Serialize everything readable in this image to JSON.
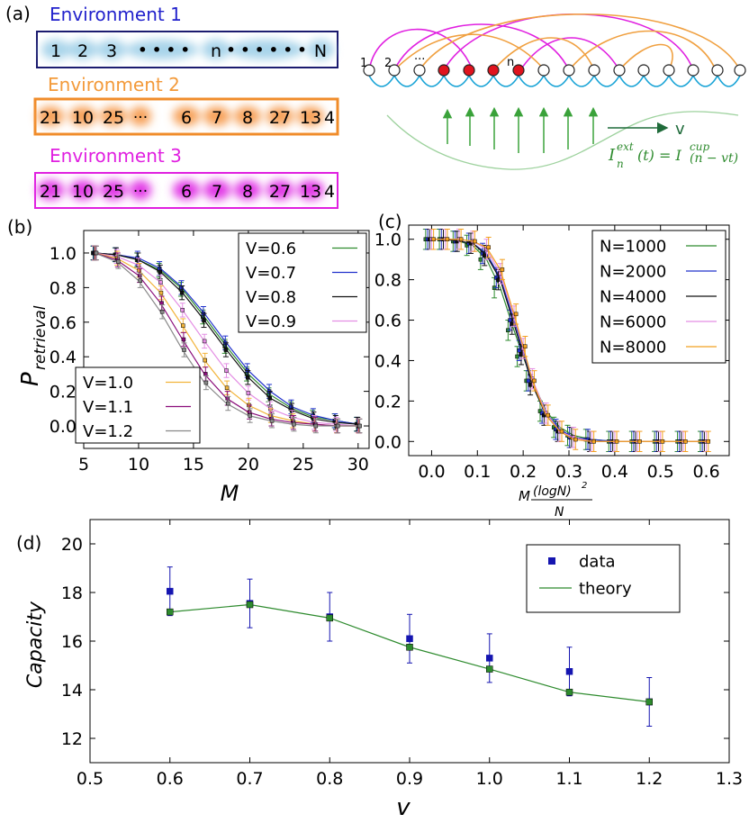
{
  "panel_labels": {
    "a": "(a)",
    "b": "(b)",
    "c": "(c)",
    "d": "(d)"
  },
  "panel_a": {
    "environments": [
      {
        "title": "Environment 1",
        "color": "#2222cc",
        "box_color": "#1a1a6e",
        "glow": "#a8d4ea",
        "sequence": [
          "1",
          "2",
          "3",
          "• • • •",
          "n",
          "• • • • • •",
          "N"
        ]
      },
      {
        "title": "Environment 2",
        "color": "#f39a3a",
        "box_color": "#f08c2a",
        "glow": "#f7a35c",
        "sequence": [
          "21",
          "10",
          "25",
          "···",
          "6",
          "7",
          "8",
          "27",
          "13",
          "4"
        ]
      },
      {
        "title": "Environment 3",
        "color": "#e020e0",
        "box_color": "#e020e0",
        "glow": "#e23ae6",
        "sequence": [
          "21",
          "10",
          "25",
          "···",
          "6",
          "7",
          "8",
          "27",
          "13",
          "4"
        ]
      }
    ],
    "chain": {
      "node_labels": [
        "1",
        "2",
        "···",
        "n"
      ],
      "arrow_label": "v",
      "formula": "I_n^{ext}(t) = I^{cup}(n − vt)",
      "formula_left": "I",
      "formula_n": "n",
      "formula_ext": "ext",
      "formula_mid": "(t) = I",
      "formula_cup": "cup",
      "formula_right": "(n − vt)",
      "colors": {
        "active": "#e0141e",
        "wave": "#17a3d6",
        "arc_magenta": "#e020e0",
        "arc_orange": "#f0a040",
        "green": "#3aa23a"
      }
    }
  },
  "chart_data": [
    {
      "id": "b",
      "type": "line",
      "xlabel": "M",
      "ylabel": "P",
      "ylabel_sub": "retrieval",
      "xlim": [
        5,
        31
      ],
      "ylim": [
        -0.13,
        1.13
      ],
      "xticks": [
        "5",
        "10",
        "15",
        "20",
        "25",
        "30"
      ],
      "yticks": [
        "0.0",
        "0.2",
        "0.4",
        "0.6",
        "0.8",
        "1.0"
      ],
      "legends": [
        {
          "placement": "top-right",
          "items": [
            "V=0.6",
            "V=0.7",
            "V=0.8",
            "V=0.9"
          ]
        },
        {
          "placement": "bottom-left",
          "items": [
            "V=1.0",
            "V=1.1",
            "V=1.2"
          ]
        }
      ],
      "x": [
        6,
        8,
        10,
        12,
        14,
        16,
        18,
        20,
        22,
        24,
        26,
        28,
        30
      ],
      "series": [
        {
          "name": "V=0.6",
          "color": "#2e8b2e",
          "values": [
            1.0,
            0.99,
            0.96,
            0.9,
            0.79,
            0.63,
            0.46,
            0.3,
            0.18,
            0.1,
            0.05,
            0.03,
            0.01
          ]
        },
        {
          "name": "V=0.7",
          "color": "#2233cc",
          "values": [
            1.0,
            0.99,
            0.97,
            0.91,
            0.8,
            0.65,
            0.48,
            0.32,
            0.2,
            0.11,
            0.06,
            0.03,
            0.01
          ]
        },
        {
          "name": "V=0.8",
          "color": "#111111",
          "values": [
            1.0,
            0.99,
            0.96,
            0.89,
            0.77,
            0.61,
            0.44,
            0.28,
            0.16,
            0.09,
            0.04,
            0.02,
            0.01
          ]
        },
        {
          "name": "V=0.9",
          "color": "#e48ee4",
          "values": [
            1.0,
            0.98,
            0.93,
            0.83,
            0.67,
            0.49,
            0.32,
            0.19,
            0.1,
            0.05,
            0.02,
            0.01,
            0.0
          ]
        },
        {
          "name": "V=1.0",
          "color": "#f2b43a",
          "values": [
            1.0,
            0.97,
            0.9,
            0.77,
            0.58,
            0.38,
            0.22,
            0.12,
            0.06,
            0.03,
            0.01,
            0.0,
            0.0
          ]
        },
        {
          "name": "V=1.1",
          "color": "#8a0c7a",
          "values": [
            1.0,
            0.96,
            0.87,
            0.71,
            0.5,
            0.3,
            0.16,
            0.08,
            0.04,
            0.02,
            0.01,
            0.0,
            0.0
          ]
        },
        {
          "name": "V=1.2",
          "color": "#888888",
          "values": [
            1.0,
            0.95,
            0.84,
            0.66,
            0.44,
            0.25,
            0.13,
            0.06,
            0.03,
            0.01,
            0.0,
            0.0,
            0.0
          ]
        }
      ]
    },
    {
      "id": "c",
      "type": "line",
      "xlabel_prefix": "M",
      "xlabel_num": "(logN)",
      "xlabel_sup": "2",
      "xlabel_den": "N",
      "xlim": [
        -0.05,
        0.65
      ],
      "ylim": [
        -0.07,
        1.07
      ],
      "xticks": [
        "0.0",
        "0.1",
        "0.2",
        "0.3",
        "0.4",
        "0.5",
        "0.6"
      ],
      "yticks": [
        "0.0",
        "0.2",
        "0.4",
        "0.6",
        "0.8",
        "1.0"
      ],
      "legends": [
        {
          "placement": "top-right",
          "items": [
            "N=1000",
            "N=2000",
            "N=4000",
            "N=6000",
            "N=8000"
          ]
        }
      ],
      "x": [
        0.0,
        0.03,
        0.06,
        0.09,
        0.12,
        0.15,
        0.18,
        0.2,
        0.22,
        0.25,
        0.28,
        0.31,
        0.35,
        0.4,
        0.45,
        0.5,
        0.55,
        0.6
      ],
      "series": [
        {
          "name": "N=1000",
          "color": "#2e8b2e",
          "values": [
            1.0,
            1.0,
            0.99,
            0.97,
            0.9,
            0.76,
            0.55,
            0.42,
            0.3,
            0.15,
            0.07,
            0.03,
            0.01,
            0.0,
            0.0,
            0.0,
            0.0,
            0.0
          ]
        },
        {
          "name": "N=2000",
          "color": "#2233cc",
          "values": [
            1.0,
            1.0,
            0.99,
            0.98,
            0.93,
            0.81,
            0.6,
            0.45,
            0.3,
            0.14,
            0.06,
            0.02,
            0.01,
            0.0,
            0.0,
            0.0,
            0.0,
            0.0
          ]
        },
        {
          "name": "N=4000",
          "color": "#111111",
          "values": [
            1.0,
            1.0,
            0.99,
            0.98,
            0.92,
            0.8,
            0.58,
            0.43,
            0.28,
            0.13,
            0.05,
            0.02,
            0.0,
            0.0,
            0.0,
            0.0,
            0.0,
            0.0
          ]
        },
        {
          "name": "N=6000",
          "color": "#e48ee4",
          "values": [
            1.0,
            1.0,
            1.0,
            0.99,
            0.95,
            0.83,
            0.62,
            0.46,
            0.31,
            0.14,
            0.05,
            0.02,
            0.0,
            0.0,
            0.0,
            0.0,
            0.0,
            0.0
          ]
        },
        {
          "name": "N=8000",
          "color": "#f2a020",
          "values": [
            1.0,
            1.0,
            1.0,
            0.99,
            0.96,
            0.85,
            0.63,
            0.47,
            0.3,
            0.13,
            0.05,
            0.01,
            0.0,
            0.0,
            0.0,
            0.0,
            0.0,
            0.0
          ]
        }
      ]
    },
    {
      "id": "d",
      "type": "line",
      "xlabel": "v",
      "ylabel": "Capacity",
      "xlim": [
        0.5,
        1.3
      ],
      "ylim": [
        11,
        21
      ],
      "xticks": [
        "0.5",
        "0.6",
        "0.7",
        "0.8",
        "0.9",
        "1.0",
        "1.1",
        "1.2",
        "1.3"
      ],
      "yticks": [
        "12",
        "14",
        "16",
        "18",
        "20"
      ],
      "legends": [
        {
          "placement": "top-right",
          "items": [
            "data",
            "theory"
          ]
        }
      ],
      "x": [
        0.6,
        0.7,
        0.8,
        0.9,
        1.0,
        1.1,
        1.2
      ],
      "series": [
        {
          "name": "data",
          "color": "#1515b0",
          "marker": "square",
          "values": [
            18.05,
            17.55,
            17.0,
            16.1,
            15.3,
            14.75,
            13.5
          ],
          "errors": [
            1.0,
            1.0,
            1.0,
            1.0,
            1.0,
            1.0,
            1.0
          ]
        },
        {
          "name": "theory",
          "color": "#2e8b2e",
          "values": [
            17.2,
            17.5,
            16.95,
            15.75,
            14.85,
            13.9,
            13.5
          ]
        }
      ]
    }
  ]
}
